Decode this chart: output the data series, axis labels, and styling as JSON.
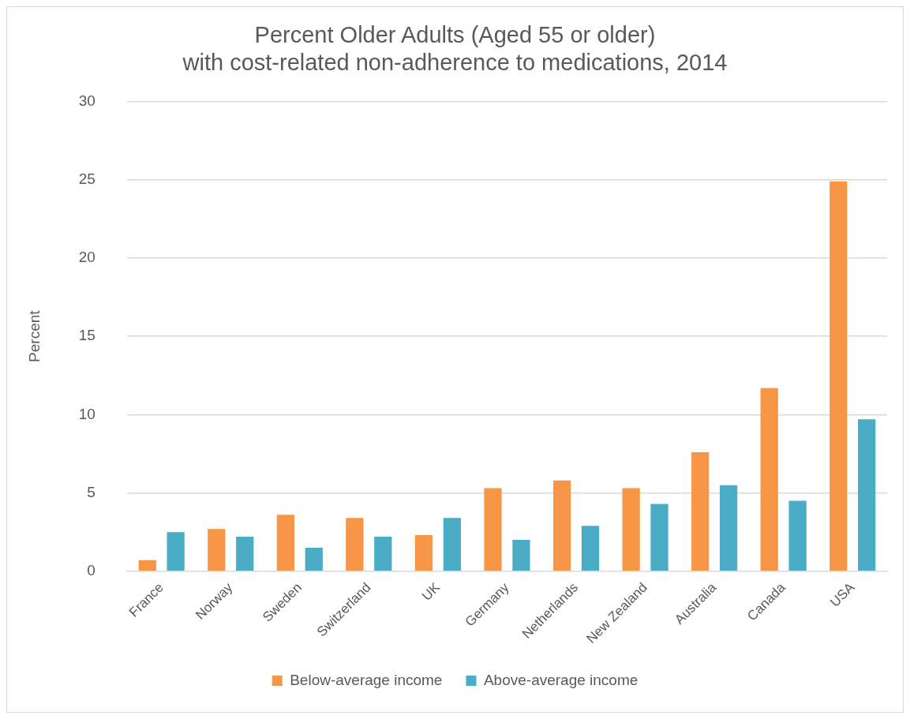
{
  "chart_data": {
    "type": "bar",
    "title": [
      "Percent Older Adults (Aged 55 or older)",
      "with cost-related non-adherence to medications, 2014"
    ],
    "ylabel": "Percent",
    "categories": [
      "France",
      "Norway",
      "Sweden",
      "Switzerland",
      "UK",
      "Germany",
      "Netherlands",
      "New Zealand",
      "Australia",
      "Canada",
      "USA"
    ],
    "series": [
      {
        "name": "Below-average income",
        "color": "#f79646",
        "values": [
          0.7,
          2.7,
          3.6,
          3.4,
          2.3,
          5.3,
          5.8,
          5.3,
          7.6,
          11.7,
          24.9
        ]
      },
      {
        "name": "Above-average income",
        "color": "#4bacc6",
        "values": [
          2.5,
          2.2,
          1.5,
          2.2,
          3.4,
          2.0,
          2.9,
          4.3,
          5.5,
          4.5,
          9.7
        ]
      }
    ],
    "ylim": [
      0,
      30
    ],
    "yticks": [
      0,
      5,
      10,
      15,
      20,
      25,
      30
    ],
    "grid": "y",
    "legend": "bottom"
  }
}
